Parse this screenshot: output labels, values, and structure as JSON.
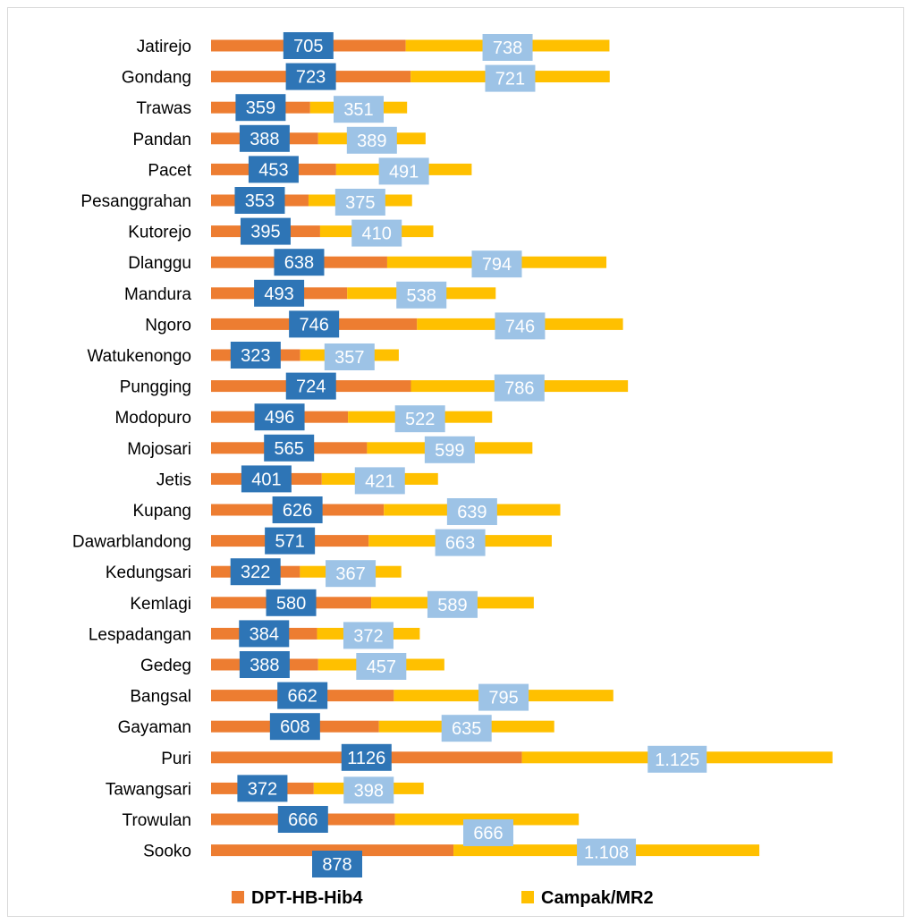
{
  "chart_data": {
    "type": "bar",
    "stacked": true,
    "orientation": "horizontal",
    "categories": [
      "Jatirejo",
      "Gondang",
      "Trawas",
      "Pandan",
      "Pacet",
      "Pesanggrahan",
      "Kutorejo",
      "Dlanggu",
      "Mandura",
      "Ngoro",
      "Watukenongo",
      "Pungging",
      "Modopuro",
      "Mojosari",
      "Jetis",
      "Kupang",
      "Dawarblandong",
      "Kedungsari",
      "Kemlagi",
      "Lespadangan",
      "Gedeg",
      "Bangsal",
      "Gayaman",
      "Puri",
      "Tawangsari",
      "Trowulan",
      "Sooko"
    ],
    "series": [
      {
        "name": "DPT-HB-Hib4",
        "color": "#ED7D31",
        "label_color": "#2E75B6",
        "values": [
          705,
          723,
          359,
          388,
          453,
          353,
          395,
          638,
          493,
          746,
          323,
          724,
          496,
          565,
          401,
          626,
          571,
          322,
          580,
          384,
          388,
          662,
          608,
          1126,
          372,
          666,
          878
        ],
        "labels": [
          "705",
          "723",
          "359",
          "388",
          "453",
          "353",
          "395",
          "638",
          "493",
          "746",
          "323",
          "724",
          "496",
          "565",
          "401",
          "626",
          "571",
          "322",
          "580",
          "384",
          "388",
          "662",
          "608",
          "1126",
          "372",
          "666",
          "878"
        ]
      },
      {
        "name": "Campak/MR2",
        "color": "#FFC000",
        "label_color": "#9DC3E6",
        "values": [
          738,
          721,
          351,
          389,
          491,
          375,
          410,
          794,
          538,
          746,
          357,
          786,
          522,
          599,
          421,
          639,
          663,
          367,
          589,
          372,
          457,
          795,
          635,
          1125,
          398,
          666,
          1108
        ],
        "labels": [
          "738",
          "721",
          "351",
          "389",
          "491",
          "375",
          "410",
          "794",
          "538",
          "746",
          "357",
          "786",
          "522",
          "599",
          "421",
          "639",
          "663",
          "367",
          "589",
          "372",
          "457",
          "795",
          "635",
          "1.125",
          "398",
          "666",
          "1.108"
        ]
      }
    ],
    "legend": "bottom",
    "grid": false
  }
}
